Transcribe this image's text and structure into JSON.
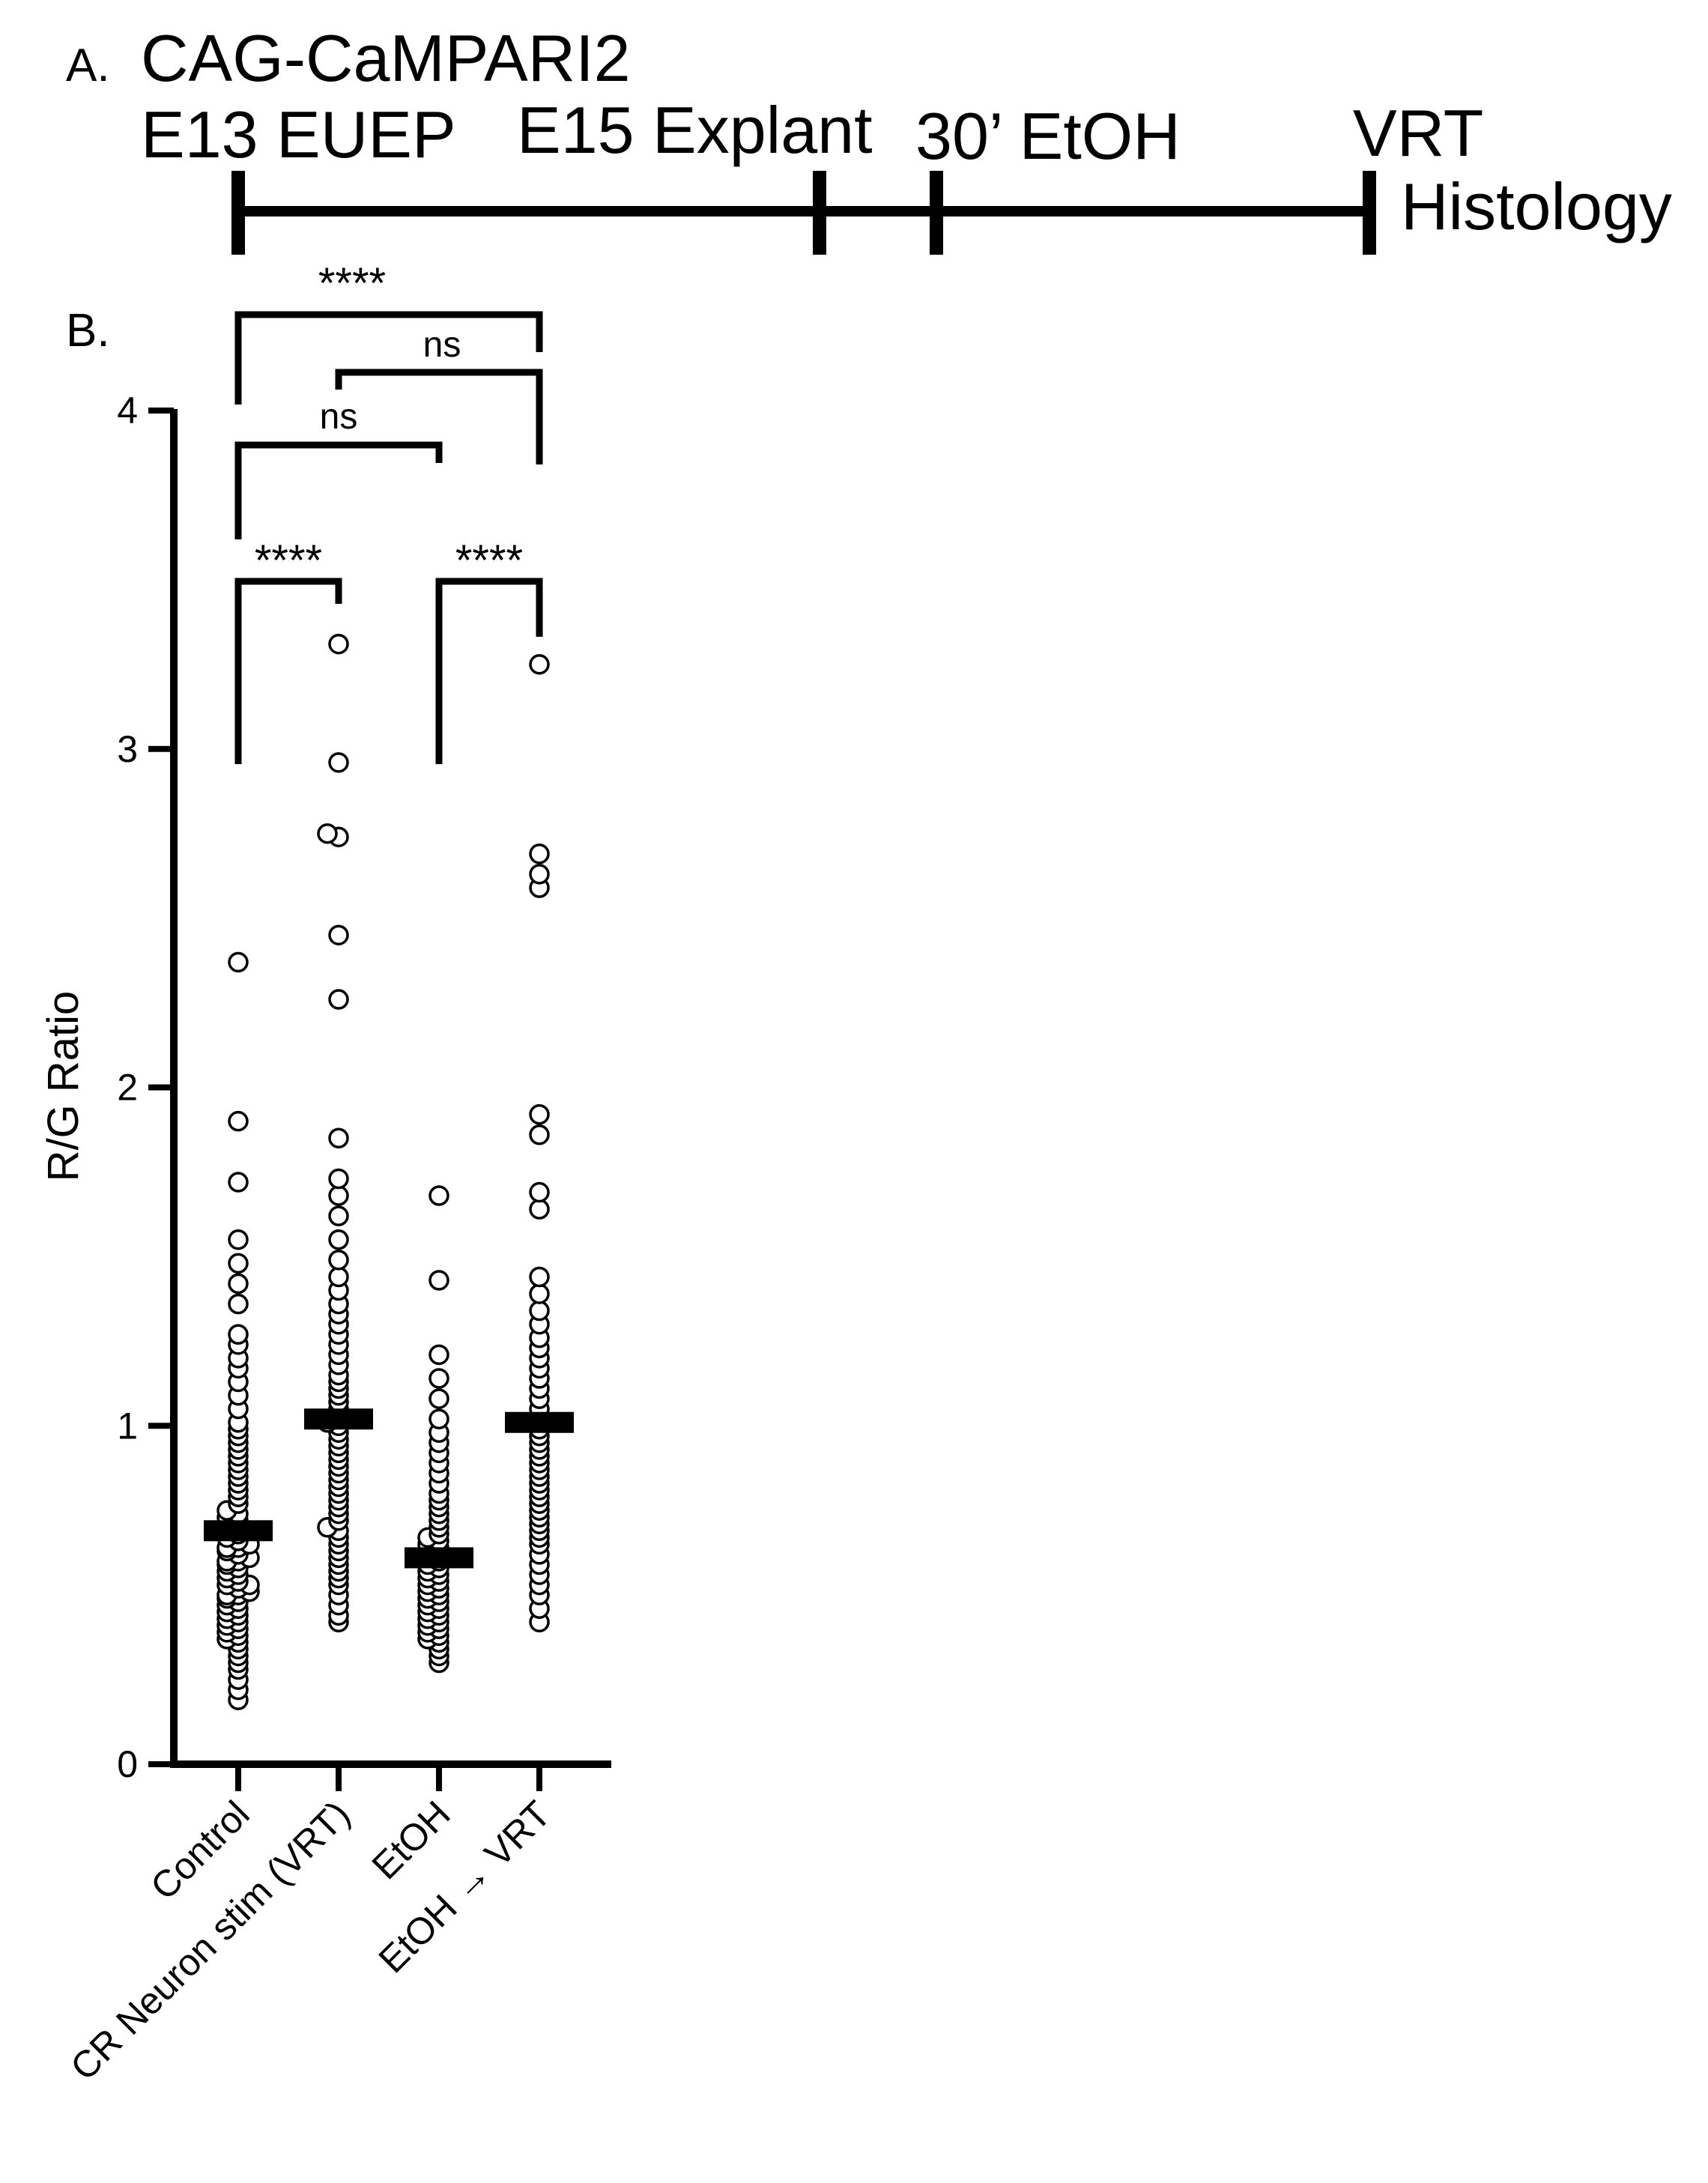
{
  "panel_a": {
    "label": "A.",
    "construct": "CAG-CaMPARI2",
    "timeline_events": [
      {
        "label": "E13 EUEP"
      },
      {
        "label": "E15 Explant"
      },
      {
        "label": "30’ EtOH"
      },
      {
        "label": "VRT"
      },
      {
        "label": "Histology"
      }
    ]
  },
  "panel_b": {
    "label": "B."
  },
  "colors": {
    "ink": "#000000",
    "marker_fill": "#ffffff"
  },
  "chart_data": {
    "type": "scatter",
    "subtype": "dot plot with mean bar",
    "ylabel": "R/G Ratio",
    "ylim": [
      0,
      4
    ],
    "yticks": [
      0,
      1,
      2,
      3,
      4
    ],
    "categories": [
      "Control",
      "CR Neuron stim (VRT)",
      "EtOH",
      "EtOH → VRT"
    ],
    "means": [
      0.69,
      1.02,
      0.61,
      1.01
    ],
    "series": [
      {
        "values": [
          0.19,
          0.22,
          0.25,
          0.28,
          0.3,
          0.32,
          0.34,
          0.36,
          0.37,
          0.38,
          0.39,
          0.4,
          0.41,
          0.42,
          0.43,
          0.44,
          0.45,
          0.46,
          0.47,
          0.48,
          0.49,
          0.5,
          0.5,
          0.51,
          0.52,
          0.53,
          0.53,
          0.54,
          0.55,
          0.56,
          0.57,
          0.58,
          0.59,
          0.6,
          0.6,
          0.61,
          0.62,
          0.63,
          0.64,
          0.64,
          0.65,
          0.66,
          0.67,
          0.68,
          0.69,
          0.7,
          0.71,
          0.72,
          0.73,
          0.74,
          0.75,
          0.77,
          0.79,
          0.81,
          0.83,
          0.85,
          0.87,
          0.89,
          0.91,
          0.93,
          0.95,
          0.97,
          0.99,
          1.01,
          1.05,
          1.09,
          1.13,
          1.17,
          1.2,
          1.24,
          1.27,
          1.36,
          1.42,
          1.48,
          1.55,
          1.72,
          1.9,
          2.37
        ]
      },
      {
        "values": [
          0.42,
          0.44,
          0.47,
          0.5,
          0.53,
          0.55,
          0.57,
          0.59,
          0.61,
          0.63,
          0.65,
          0.67,
          0.69,
          0.7,
          0.72,
          0.74,
          0.76,
          0.78,
          0.8,
          0.82,
          0.84,
          0.86,
          0.88,
          0.9,
          0.92,
          0.94,
          0.96,
          0.98,
          1.0,
          1.01,
          1.03,
          1.05,
          1.07,
          1.09,
          1.11,
          1.13,
          1.15,
          1.18,
          1.21,
          1.24,
          1.27,
          1.3,
          1.33,
          1.36,
          1.4,
          1.44,
          1.49,
          1.55,
          1.62,
          1.68,
          1.73,
          1.85,
          2.26,
          2.45,
          2.74,
          2.75,
          2.96,
          3.31
        ]
      },
      {
        "values": [
          0.3,
          0.32,
          0.34,
          0.36,
          0.37,
          0.38,
          0.39,
          0.4,
          0.41,
          0.42,
          0.43,
          0.44,
          0.45,
          0.46,
          0.47,
          0.48,
          0.49,
          0.5,
          0.51,
          0.52,
          0.53,
          0.54,
          0.55,
          0.56,
          0.57,
          0.58,
          0.59,
          0.6,
          0.61,
          0.62,
          0.63,
          0.64,
          0.65,
          0.66,
          0.67,
          0.68,
          0.7,
          0.72,
          0.74,
          0.76,
          0.78,
          0.8,
          0.83,
          0.86,
          0.89,
          0.92,
          0.95,
          0.98,
          1.02,
          1.08,
          1.14,
          1.21,
          1.43,
          1.68
        ]
      },
      {
        "values": [
          0.42,
          0.46,
          0.5,
          0.53,
          0.56,
          0.59,
          0.62,
          0.65,
          0.67,
          0.69,
          0.71,
          0.73,
          0.75,
          0.77,
          0.79,
          0.81,
          0.83,
          0.85,
          0.87,
          0.89,
          0.91,
          0.93,
          0.95,
          0.97,
          0.99,
          1.01,
          1.03,
          1.05,
          1.08,
          1.11,
          1.14,
          1.17,
          1.2,
          1.23,
          1.26,
          1.3,
          1.34,
          1.39,
          1.44,
          1.64,
          1.69,
          1.86,
          1.92,
          2.59,
          2.63,
          2.69,
          3.25
        ]
      }
    ],
    "significance": [
      {
        "groups": [
          "Control",
          "EtOH → VRT"
        ],
        "label": "****"
      },
      {
        "groups": [
          "CR Neuron stim (VRT)",
          "EtOH → VRT"
        ],
        "label": "ns"
      },
      {
        "groups": [
          "Control",
          "EtOH"
        ],
        "label": "ns"
      },
      {
        "groups": [
          "Control",
          "CR Neuron stim (VRT)"
        ],
        "label": "****"
      },
      {
        "groups": [
          "EtOH",
          "EtOH → VRT"
        ],
        "label": "****"
      }
    ]
  }
}
